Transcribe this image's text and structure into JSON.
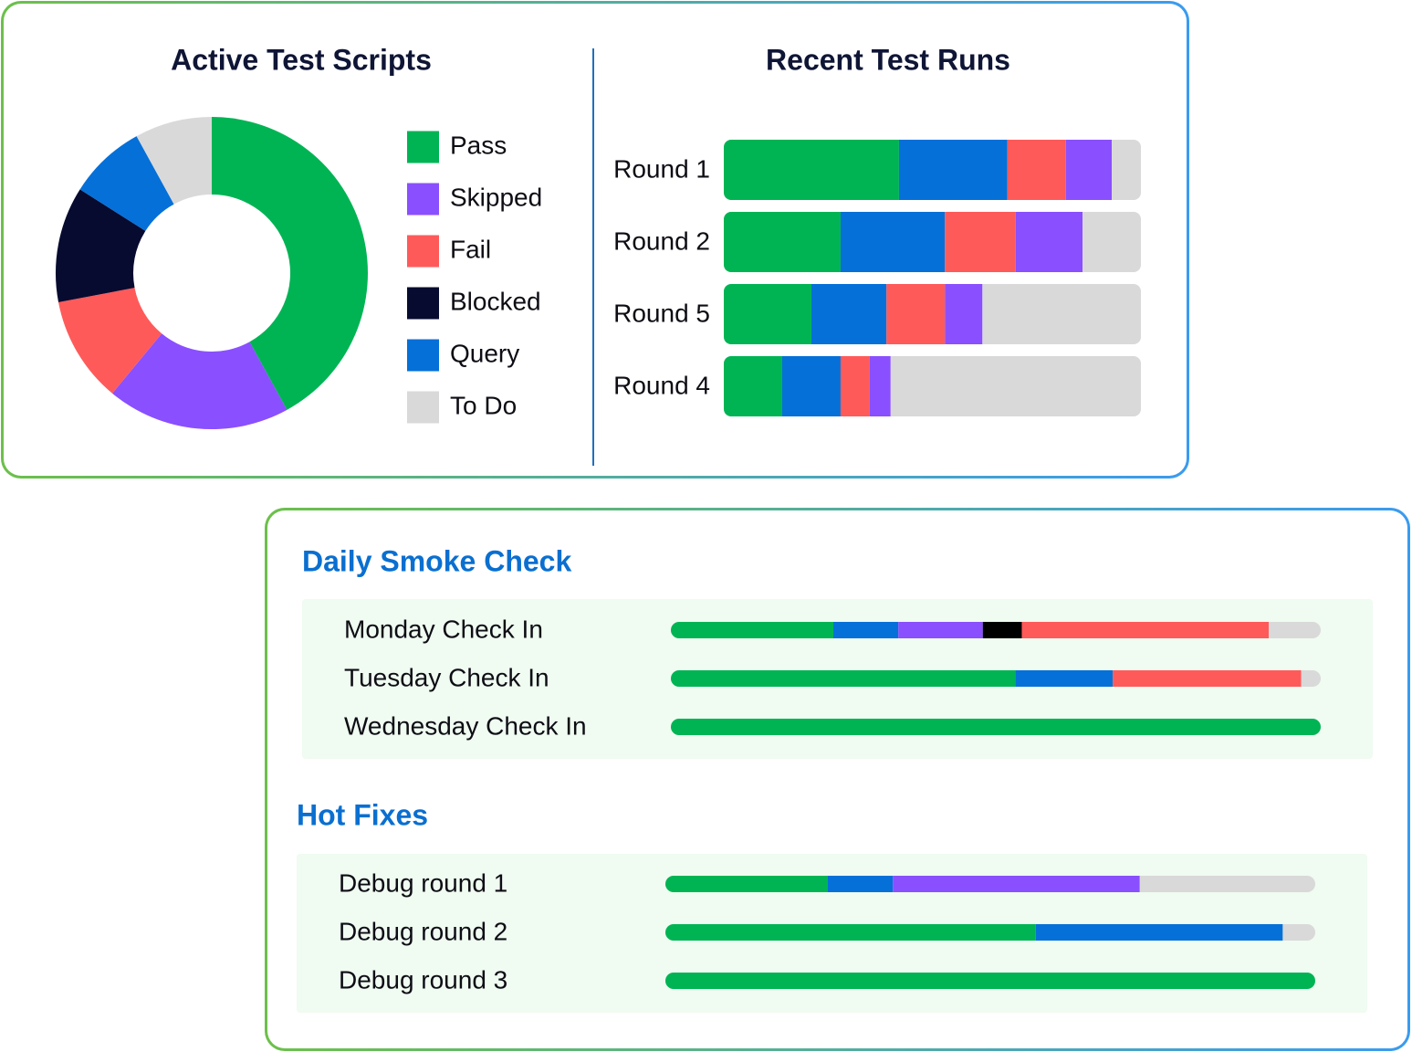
{
  "chart_data": [
    {
      "type": "pie",
      "donut": true,
      "title": "Active Test Scripts",
      "categories": [
        "Pass",
        "Skipped",
        "Fail",
        "Blocked",
        "Query",
        "To Do"
      ],
      "values": [
        42,
        19,
        11,
        12,
        8,
        8
      ],
      "colors": [
        "#00b454",
        "#8a4fff",
        "#ff5a5a",
        "#070b30",
        "#0570d8",
        "#d9d9d9"
      ]
    },
    {
      "type": "bar",
      "stacked": true,
      "orientation": "horizontal",
      "title": "Recent Test Runs",
      "categories": [
        "Round 1",
        "Round 2",
        "Round 5",
        "Round 4"
      ],
      "xlim": [
        0,
        100
      ],
      "series": [
        {
          "color": "#00b454",
          "values": [
            42,
            28,
            21,
            14
          ]
        },
        {
          "color": "#0570d8",
          "values": [
            26,
            25,
            18,
            14
          ]
        },
        {
          "color": "#ff5a5a",
          "values": [
            14,
            17,
            14,
            7
          ]
        },
        {
          "color": "#8a4fff",
          "values": [
            11,
            16,
            9,
            5
          ]
        },
        {
          "color": "#d9d9d9",
          "values": [
            7,
            14,
            38,
            60
          ]
        }
      ]
    },
    {
      "type": "bar",
      "stacked": true,
      "orientation": "horizontal",
      "title": "Daily Smoke Check",
      "categories": [
        "Monday Check In",
        "Tuesday Check In",
        "Wednesday Check In"
      ],
      "xlim": [
        0,
        100
      ],
      "series": [
        {
          "color": "#00b454",
          "values": [
            25,
            53,
            100
          ]
        },
        {
          "color": "#0570d8",
          "values": [
            10,
            15,
            0
          ]
        },
        {
          "color": "#8a4fff",
          "values": [
            13,
            0,
            0
          ]
        },
        {
          "color": "#000000",
          "values": [
            6,
            0,
            0
          ]
        },
        {
          "color": "#ff5a5a",
          "values": [
            38,
            29,
            0
          ]
        },
        {
          "color": "#d9d9d9",
          "values": [
            8,
            3,
            0
          ]
        }
      ]
    },
    {
      "type": "bar",
      "stacked": true,
      "orientation": "horizontal",
      "title": "Hot Fixes",
      "categories": [
        "Debug round 1",
        "Debug round 2",
        "Debug round 3"
      ],
      "xlim": [
        0,
        100
      ],
      "series": [
        {
          "color": "#00b454",
          "values": [
            25,
            57,
            100
          ]
        },
        {
          "color": "#0570d8",
          "values": [
            10,
            38,
            0
          ]
        },
        {
          "color": "#8a4fff",
          "values": [
            38,
            0,
            0
          ]
        },
        {
          "color": "#d9d9d9",
          "values": [
            27,
            5,
            0
          ]
        }
      ]
    }
  ]
}
